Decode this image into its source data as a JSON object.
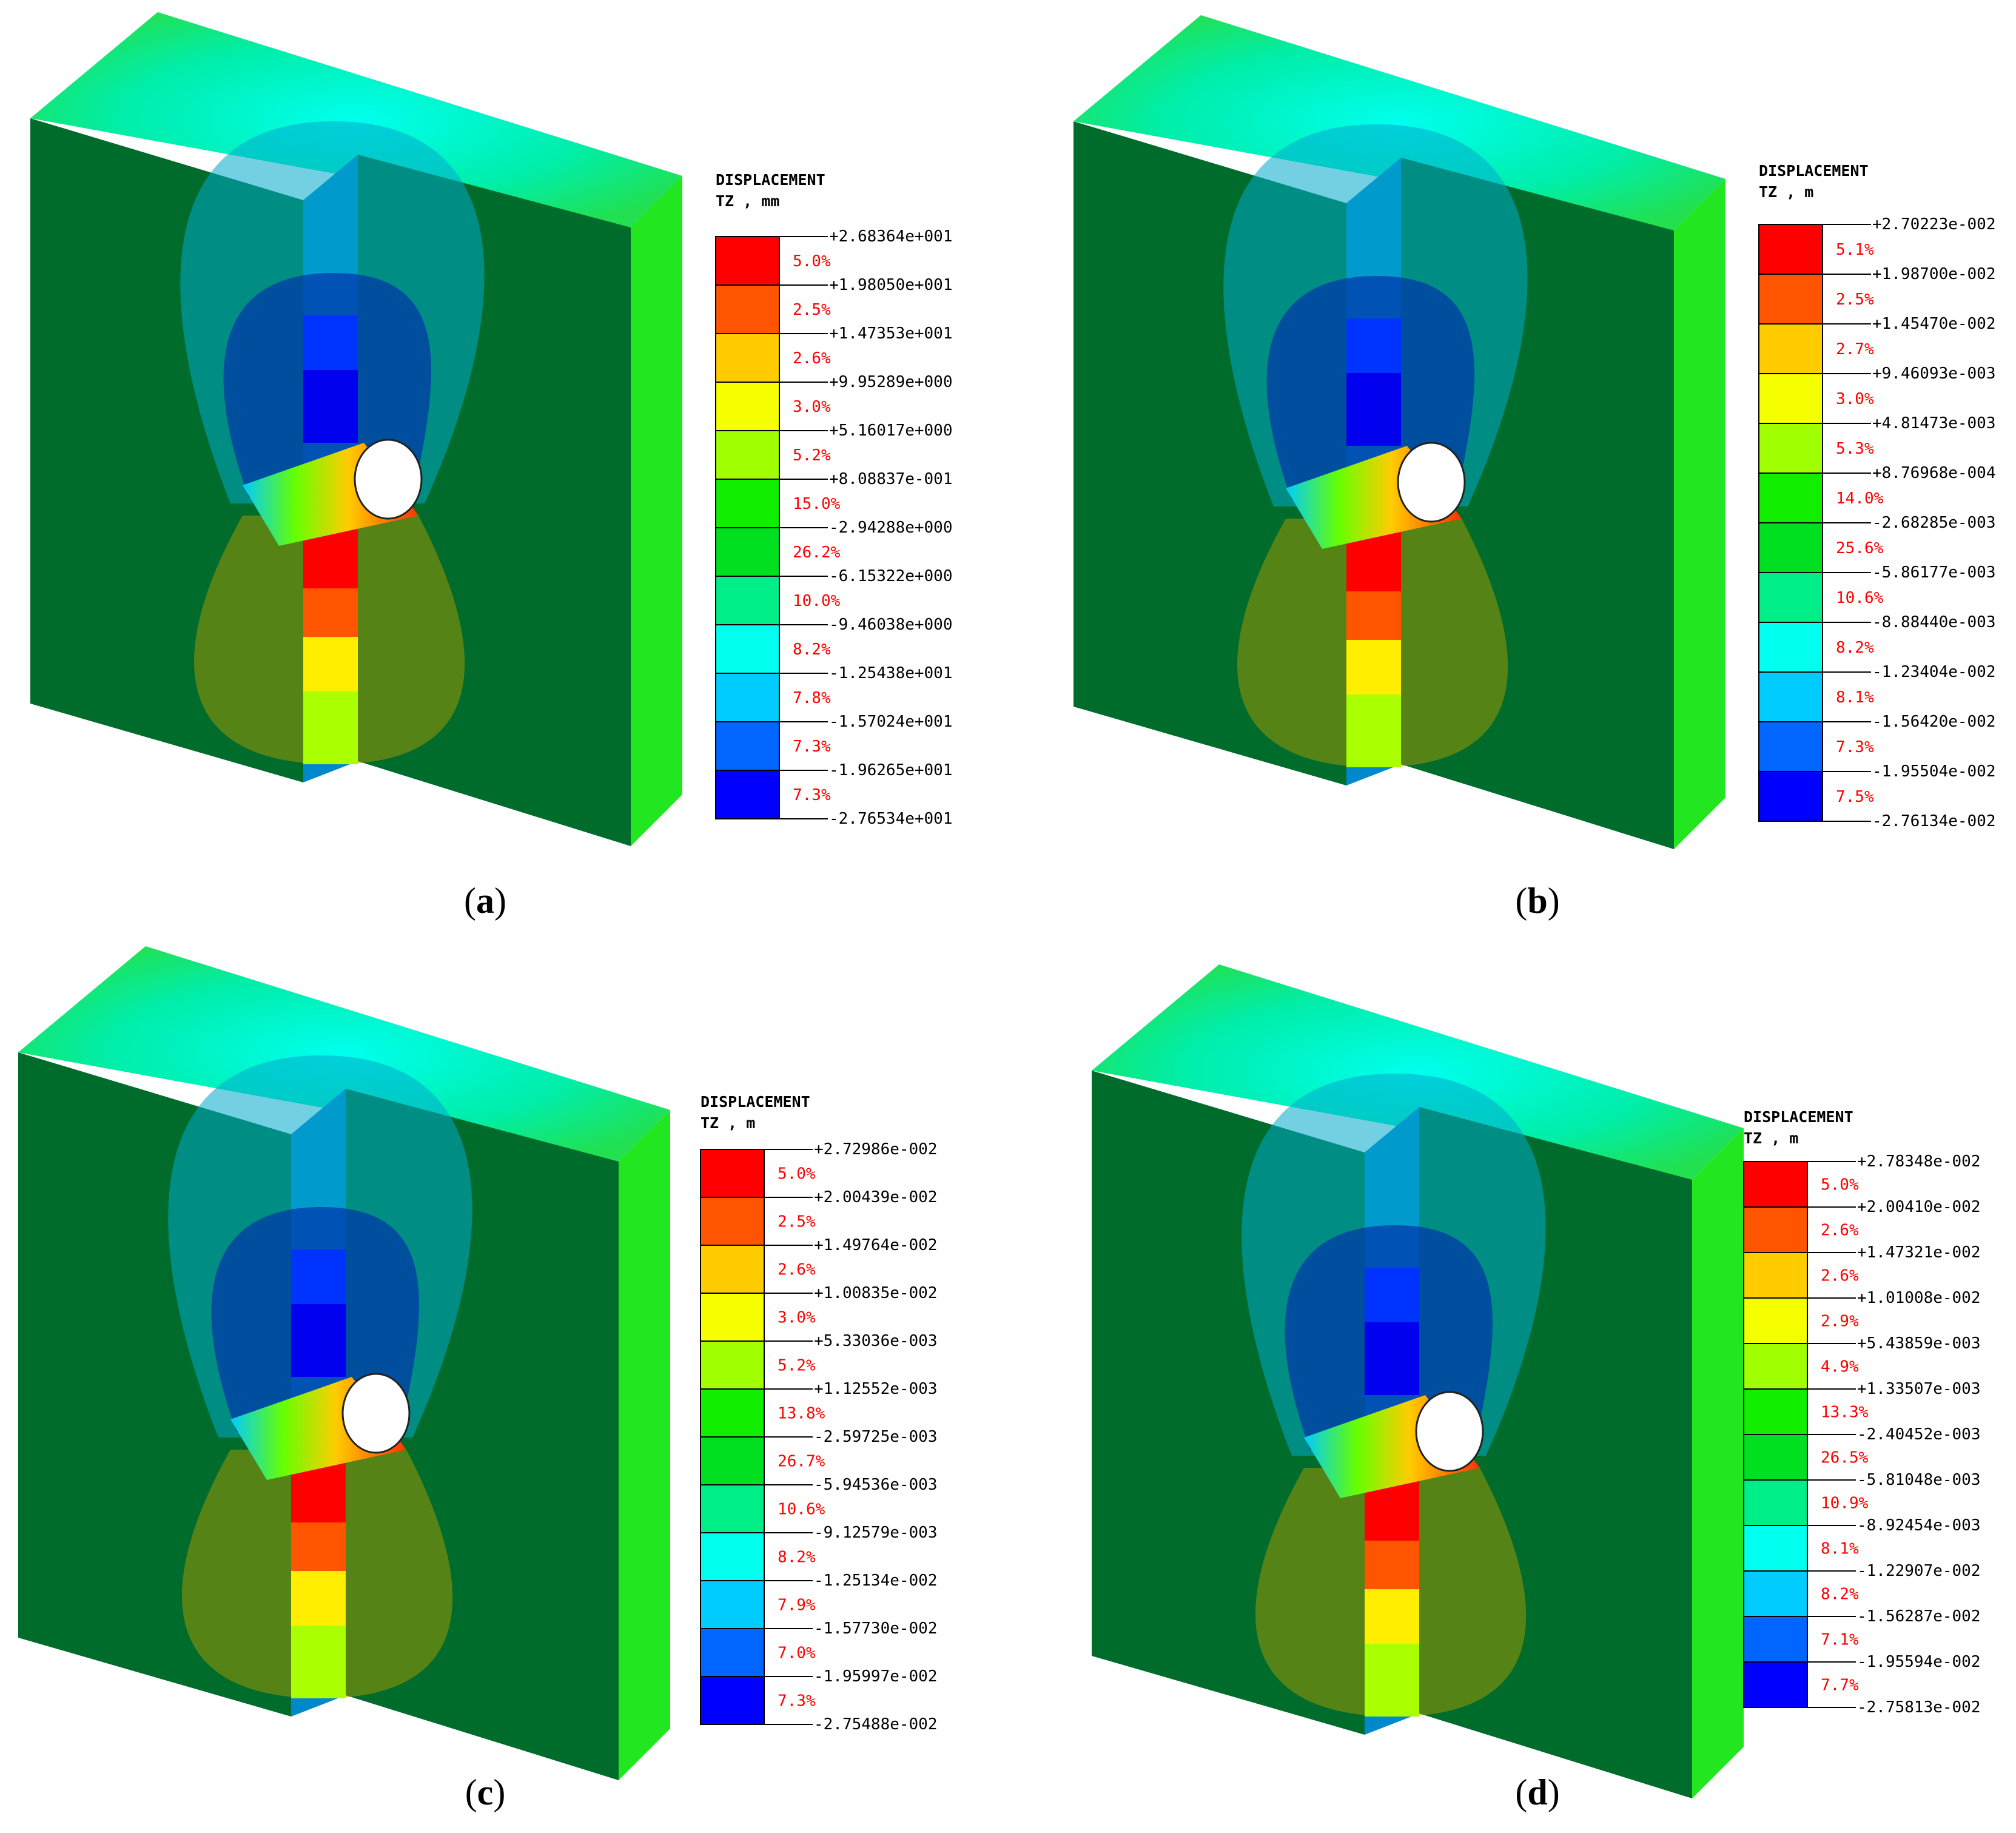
{
  "panels": [
    {
      "label": "a",
      "legend": {
        "title": "DISPLACEMENT",
        "unit": "TZ , mm",
        "values": [
          "+2.68364e+001",
          "+1.98050e+001",
          "+1.47353e+001",
          "+9.95289e+000",
          "+5.16017e+000",
          "+8.08837e-001",
          "-2.94288e+000",
          "-6.15322e+000",
          "-9.46038e+000",
          "-1.25438e+001",
          "-1.57024e+001",
          "-1.96265e+001",
          "-2.76534e+001"
        ],
        "percents": [
          "5.0%",
          "2.5%",
          "2.6%",
          "3.0%",
          "5.2%",
          "15.0%",
          "26.2%",
          "10.0%",
          "8.2%",
          "7.8%",
          "7.3%",
          "7.3%"
        ]
      }
    },
    {
      "label": "b",
      "legend": {
        "title": "DISPLACEMENT",
        "unit": "TZ , m",
        "values": [
          "+2.70223e-002",
          "+1.98700e-002",
          "+1.45470e-002",
          "+9.46093e-003",
          "+4.81473e-003",
          "+8.76968e-004",
          "-2.68285e-003",
          "-5.86177e-003",
          "-8.88440e-003",
          "-1.23404e-002",
          "-1.56420e-002",
          "-1.95504e-002",
          "-2.76134e-002"
        ],
        "percents": [
          "5.1%",
          "2.5%",
          "2.7%",
          "3.0%",
          "5.3%",
          "14.0%",
          "25.6%",
          "10.6%",
          "8.2%",
          "8.1%",
          "7.3%",
          "7.5%"
        ]
      }
    },
    {
      "label": "c",
      "legend": {
        "title": "DISPLACEMENT",
        "unit": "TZ , m",
        "values": [
          "+2.72986e-002",
          "+2.00439e-002",
          "+1.49764e-002",
          "+1.00835e-002",
          "+5.33036e-003",
          "+1.12552e-003",
          "-2.59725e-003",
          "-5.94536e-003",
          "-9.12579e-003",
          "-1.25134e-002",
          "-1.57730e-002",
          "-1.95997e-002",
          "-2.75488e-002"
        ],
        "percents": [
          "5.0%",
          "2.5%",
          "2.6%",
          "3.0%",
          "5.2%",
          "13.8%",
          "26.7%",
          "10.6%",
          "8.2%",
          "7.9%",
          "7.0%",
          "7.3%"
        ]
      }
    },
    {
      "label": "d",
      "legend": {
        "title": "DISPLACEMENT",
        "unit": "TZ , m",
        "values": [
          "+2.78348e-002",
          "+2.00410e-002",
          "+1.47321e-002",
          "+1.01008e-002",
          "+5.43859e-003",
          "+1.33507e-003",
          "-2.40452e-003",
          "-5.81048e-003",
          "-8.92454e-003",
          "-1.22907e-002",
          "-1.56287e-002",
          "-1.95594e-002",
          "-2.75813e-002"
        ],
        "percents": [
          "5.0%",
          "2.6%",
          "2.6%",
          "2.9%",
          "4.9%",
          "13.3%",
          "26.5%",
          "10.9%",
          "8.1%",
          "8.2%",
          "7.1%",
          "7.7%"
        ]
      }
    }
  ],
  "colors": {
    "scale": [
      "#ff0000",
      "#ff5500",
      "#ffcc00",
      "#f6ff00",
      "#a0ff00",
      "#11ee00",
      "#00e020",
      "#00ee88",
      "#00ffee",
      "#00ccff",
      "#0066ff",
      "#0000ff"
    ],
    "model_front": "#006a2a",
    "model_side": "#11e000",
    "model_top": "#00ee88"
  }
}
